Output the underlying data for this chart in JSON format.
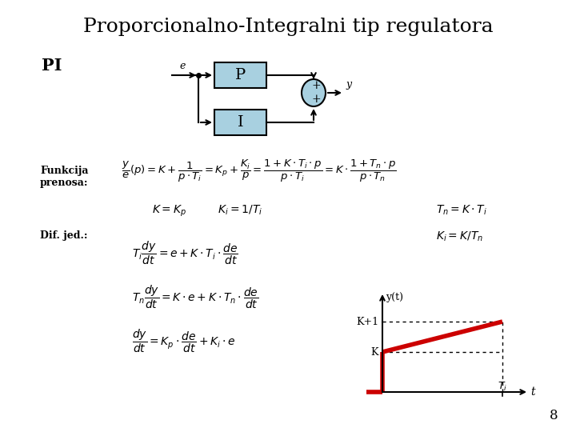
{
  "title": "Proporcionalno-Integralni tip regulatora",
  "title_fontsize": 18,
  "background_color": "#ffffff",
  "text_color": "#000000",
  "label_PI": "PI",
  "label_Funkcija": "Funkcija\nprenosa:",
  "label_Dif": "Dif. jed.:",
  "page_number": "8",
  "box_color": "#a8d0e0",
  "box_edge_color": "#000000",
  "graph_line_color": "#cc0000"
}
